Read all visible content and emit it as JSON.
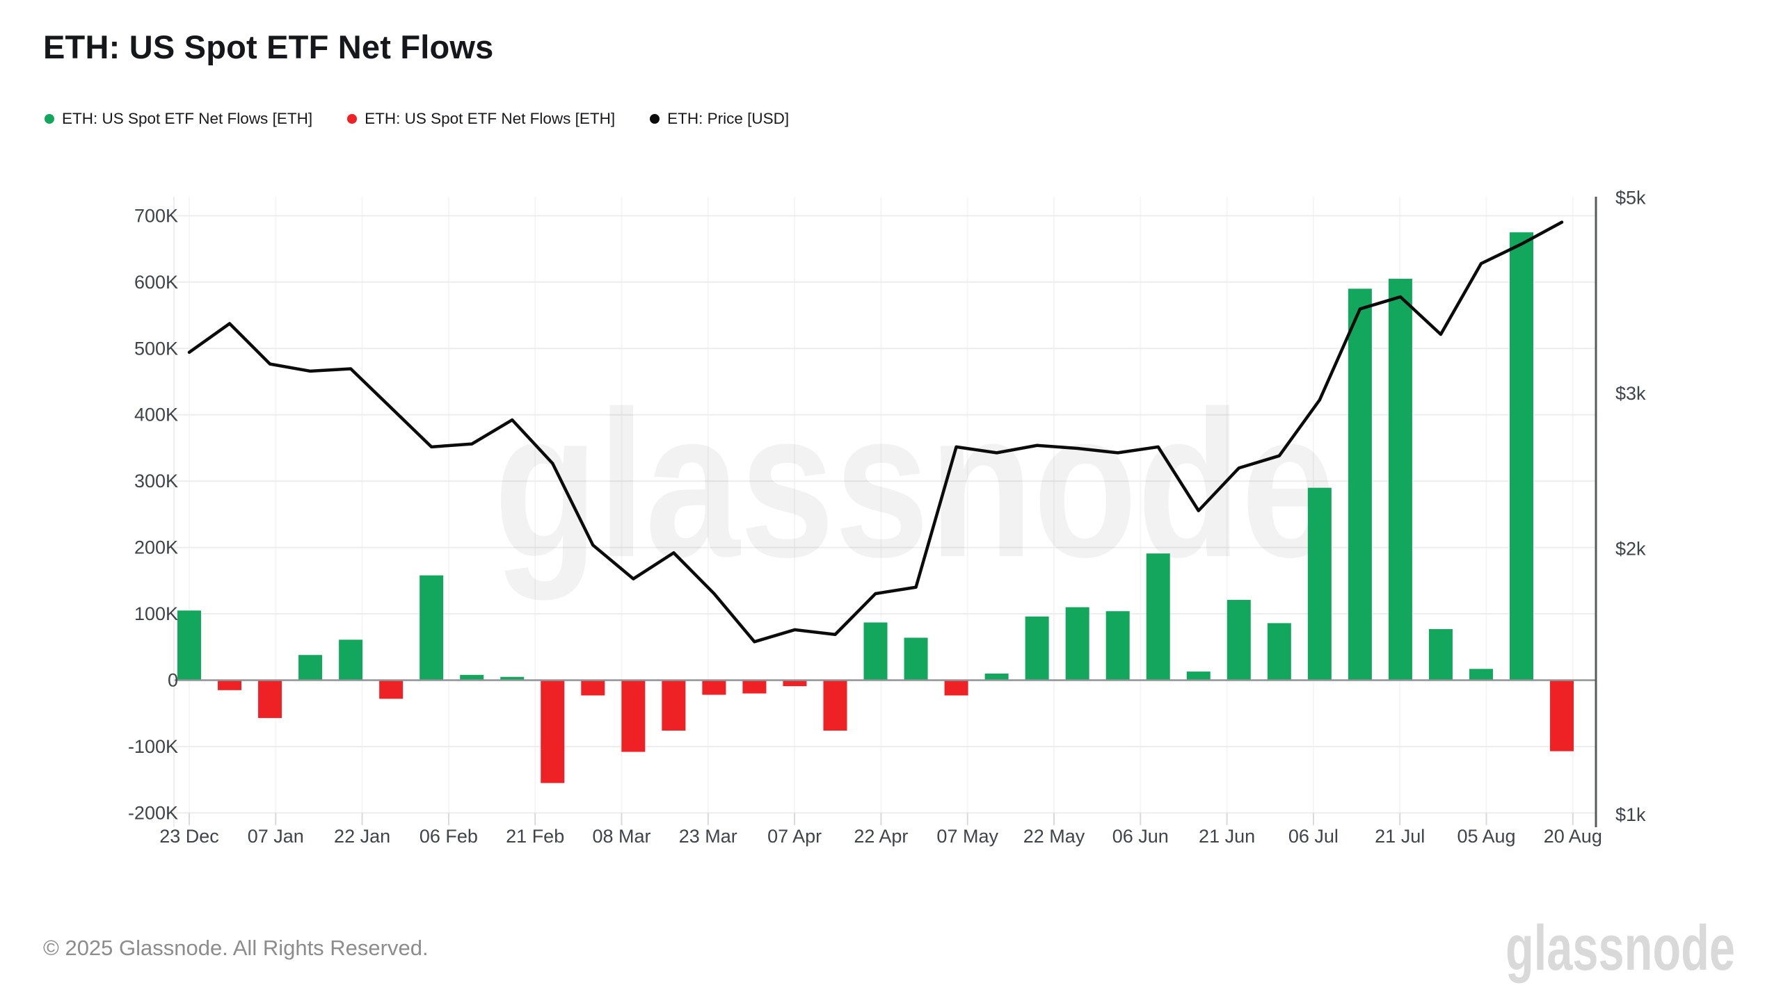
{
  "page": {
    "title": "ETH: US Spot ETF Net Flows",
    "footer": "© 2025 Glassnode. All Rights Reserved.",
    "brand_logo": "glassnode"
  },
  "legend": [
    {
      "label": "ETH: US Spot ETF Net Flows [ETH]",
      "color": "#12a75c"
    },
    {
      "label": "ETH: US Spot ETF Net Flows [ETH]",
      "color": "#ee2125"
    },
    {
      "label": "ETH: Price [USD]",
      "color": "#0b0b0b"
    }
  ],
  "chart_data": {
    "type": "mixed",
    "title": "ETH: US Spot ETF Net Flows",
    "watermark": "glassnode",
    "grid": true,
    "legend_position": "top-left",
    "x_labels": [
      "23 Dec",
      "07 Jan",
      "22 Jan",
      "06 Feb",
      "21 Feb",
      "08 Mar",
      "23 Mar",
      "07 Apr",
      "22 Apr",
      "07 May",
      "22 May",
      "06 Jun",
      "21 Jun",
      "06 Jul",
      "21 Jul",
      "05 Aug",
      "20 Aug"
    ],
    "series": [
      {
        "name": "ETH: US Spot ETF Net Flows [ETH]",
        "type": "bar",
        "axis": "left",
        "unit": "K ETH (weekly)",
        "color_positive": "#12a75c",
        "color_negative": "#ee2125",
        "values_k_eth": [
          105,
          -15,
          -57,
          38,
          61,
          -28,
          158,
          8,
          5,
          -155,
          -23,
          -108,
          -76,
          -22,
          -20,
          -9,
          -76,
          87,
          64,
          -23,
          10,
          96,
          110,
          104,
          191,
          13,
          121,
          86,
          290,
          590,
          605,
          77,
          17,
          675,
          -107
        ]
      },
      {
        "name": "ETH: Price [USD]",
        "type": "line",
        "axis": "right",
        "unit": "USD",
        "color": "#0b0b0b",
        "values_usd": [
          3340,
          3600,
          3240,
          3180,
          3200,
          2890,
          2610,
          2630,
          2800,
          2500,
          2020,
          1850,
          1980,
          1780,
          1570,
          1620,
          1600,
          1780,
          1810,
          2610,
          2570,
          2620,
          2600,
          2570,
          2610,
          2210,
          2470,
          2550,
          2950,
          3740,
          3860,
          3500,
          4210,
          4430,
          4690
        ]
      }
    ],
    "left_axis": {
      "unit": "ETH",
      "tick_labels": [
        "700K",
        "600K",
        "500K",
        "400K",
        "300K",
        "200K",
        "100K",
        "0",
        "-100K",
        "-200K"
      ],
      "tick_values_k": [
        700,
        600,
        500,
        400,
        300,
        200,
        100,
        0,
        -100,
        -200
      ],
      "range_k": [
        -200,
        700
      ]
    },
    "right_axis": {
      "unit": "USD",
      "scale": "log",
      "tick_labels": [
        "$5k",
        "$3k",
        "$2k",
        "$1k"
      ],
      "tick_values_usd": [
        5000,
        3000,
        2000,
        1000
      ],
      "range_usd": [
        1000,
        5000
      ]
    }
  }
}
